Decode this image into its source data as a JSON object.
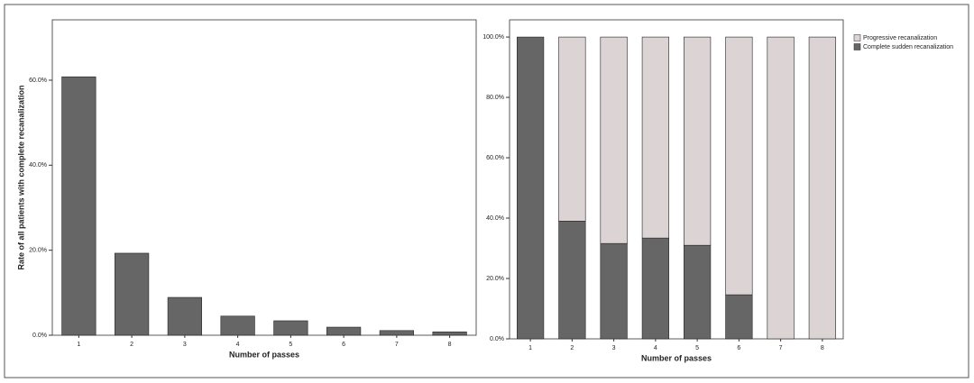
{
  "chart_data": [
    {
      "type": "bar",
      "x_label": "Number of passes",
      "y_label": "Rate of all patients with complete recanalization",
      "categories": [
        "1",
        "2",
        "3",
        "4",
        "5",
        "6",
        "7",
        "8"
      ],
      "values": [
        60.8,
        19.3,
        8.9,
        4.5,
        3.4,
        1.9,
        1.1,
        0.8
      ],
      "color": "#666666",
      "ylim": [
        0,
        74.2
      ],
      "yticks": [
        {
          "value": 0,
          "label": "0.0%"
        },
        {
          "value": 20,
          "label": "20.0%"
        },
        {
          "value": 40,
          "label": "40.0%"
        },
        {
          "value": 60,
          "label": "60.0%"
        }
      ]
    },
    {
      "type": "stacked_bar",
      "x_label": "Number of passes",
      "categories": [
        "1",
        "2",
        "3",
        "4",
        "5",
        "6",
        "7",
        "8"
      ],
      "series": [
        {
          "name": "Complete sudden recanalization",
          "color": "#666666",
          "values": [
            100,
            39,
            31.6,
            33.4,
            31,
            14.6,
            0,
            0
          ]
        },
        {
          "name": "Progressive recanalization",
          "color": "#dcd3d5",
          "values": [
            0,
            61,
            68.4,
            66.6,
            69,
            85.4,
            100,
            100
          ]
        }
      ],
      "ylim": [
        0,
        105.7
      ],
      "yticks": [
        {
          "value": 0,
          "label": "0.0%"
        },
        {
          "value": 20,
          "label": "20.0%"
        },
        {
          "value": 40,
          "label": "40.0%"
        },
        {
          "value": 60,
          "label": "60.0%"
        },
        {
          "value": 80,
          "label": "80.0%"
        },
        {
          "value": 100,
          "label": "100.0%"
        }
      ],
      "legend": "outside-top-right"
    }
  ]
}
